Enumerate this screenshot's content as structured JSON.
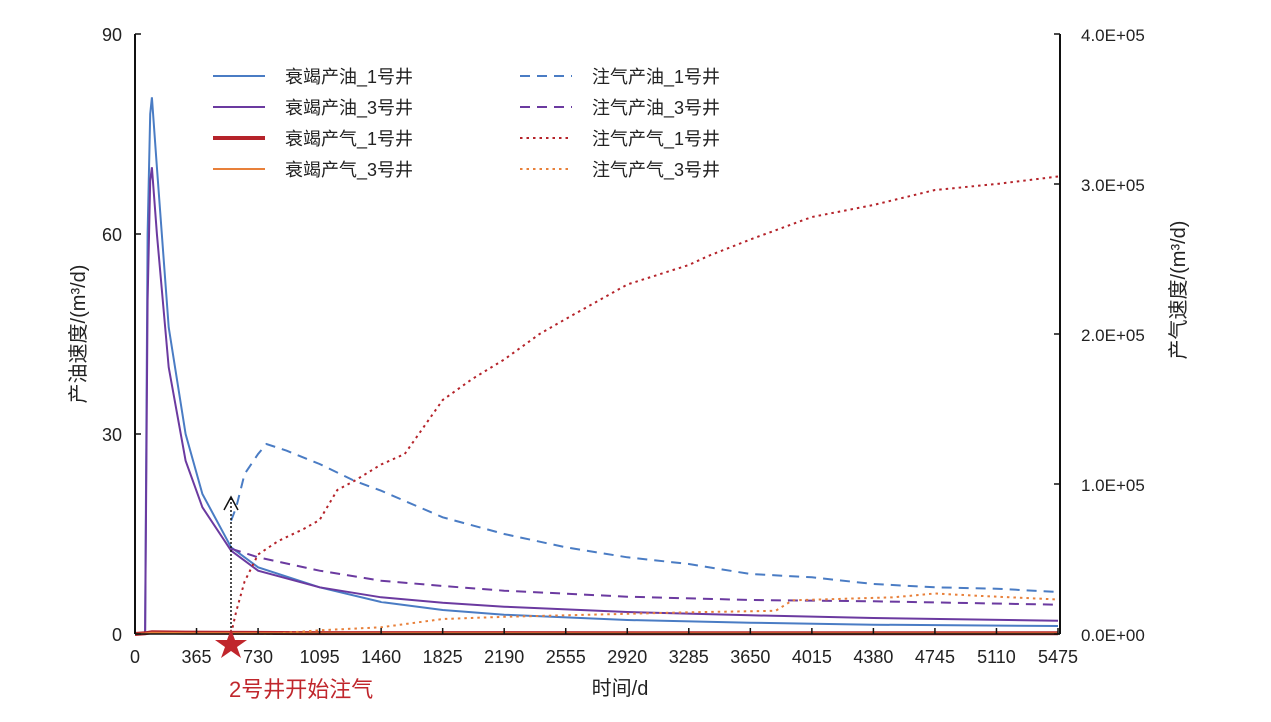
{
  "chart_data": {
    "type": "line",
    "xlabel": "时间/d",
    "ylabel_left": "产油速度/(m³/d)",
    "ylabel_right": "产气速度/(m³/d)",
    "xlim": [
      0,
      5475
    ],
    "ylim_left": [
      0,
      90
    ],
    "ylim_right": [
      0,
      400000
    ],
    "x_ticks": [
      "0",
      "365",
      "730",
      "1095",
      "1460",
      "1825",
      "2190",
      "2555",
      "2920",
      "3285",
      "3650",
      "4015",
      "4380",
      "4745",
      "5110",
      "5475"
    ],
    "y_left_ticks": [
      "0",
      "30",
      "60",
      "90"
    ],
    "y_right_ticks": [
      "0.0E+00",
      "1.0E+05",
      "2.0E+05",
      "3.0E+05",
      "4.0E+05"
    ],
    "legend_placement": "top",
    "annotation": {
      "text": "2号井开始注气",
      "x": 570
    },
    "series": [
      {
        "name": "衰竭产油_1号井",
        "axis": "left",
        "color": "#4a7cc4",
        "style": "solid",
        "x": [
          0,
          60,
          75,
          90,
          100,
          130,
          200,
          300,
          400,
          570,
          730,
          1095,
          1460,
          1825,
          2190,
          2920,
          3650,
          4380,
          5475
        ],
        "y": [
          0,
          0,
          60,
          78,
          80.5,
          70,
          46,
          30,
          21,
          13,
          10,
          7,
          4.8,
          3.6,
          2.9,
          2.1,
          1.7,
          1.4,
          1.2
        ]
      },
      {
        "name": "衰竭产油_3号井",
        "axis": "left",
        "color": "#6b3aa0",
        "style": "solid",
        "x": [
          0,
          60,
          75,
          90,
          100,
          130,
          200,
          300,
          400,
          570,
          730,
          1095,
          1460,
          1825,
          2190,
          2920,
          3650,
          4380,
          5475
        ],
        "y": [
          0,
          0,
          50,
          68,
          70,
          60,
          40,
          26,
          19,
          12.5,
          9.5,
          7,
          5.5,
          4.7,
          4.1,
          3.3,
          2.8,
          2.4,
          2
        ]
      },
      {
        "name": "衰竭产气_1号井",
        "axis": "right",
        "color": "#b5232a",
        "style": "thick",
        "x": [
          0,
          60,
          100,
          300,
          1000,
          5475
        ],
        "y": [
          0,
          500,
          1200,
          900,
          600,
          500
        ]
      },
      {
        "name": "衰竭产气_3号井",
        "axis": "right",
        "color": "#e8803a",
        "style": "solid",
        "x": [
          0,
          60,
          100,
          300,
          1000,
          5475
        ],
        "y": [
          0,
          300,
          800,
          600,
          400,
          300
        ]
      },
      {
        "name": "注气产油_1号井",
        "axis": "left",
        "color": "#4a7cc4",
        "style": "dashed",
        "x": [
          570,
          600,
          650,
          730,
          780,
          900,
          1095,
          1300,
          1460,
          1825,
          2190,
          2555,
          2920,
          3285,
          3650,
          4015,
          4380,
          4745,
          5110,
          5475
        ],
        "y": [
          17,
          19,
          24,
          27,
          28.5,
          27.5,
          25.5,
          23,
          21.5,
          17.5,
          15,
          13,
          11.5,
          10.5,
          9,
          8.5,
          7.5,
          7,
          6.8,
          6.3
        ]
      },
      {
        "name": "注气产油_3号井",
        "axis": "left",
        "color": "#6b3aa0",
        "style": "dashed",
        "x": [
          570,
          730,
          1095,
          1460,
          1825,
          2190,
          2920,
          3650,
          4380,
          5475
        ],
        "y": [
          12.8,
          11.5,
          9.5,
          8,
          7.2,
          6.5,
          5.6,
          5.1,
          4.9,
          4.4
        ]
      },
      {
        "name": "注气产气_1号井",
        "axis": "right",
        "color": "#b5232a",
        "style": "dotted",
        "x": [
          570,
          600,
          650,
          730,
          850,
          1000,
          1095,
          1200,
          1300,
          1460,
          1600,
          1825,
          2000,
          2190,
          2400,
          2555,
          2920,
          3285,
          3400,
          3650,
          4015,
          4380,
          4745,
          5110,
          5475
        ],
        "y": [
          0,
          15000,
          35000,
          53000,
          62000,
          70000,
          76000,
          96000,
          102000,
          113000,
          120000,
          156000,
          170000,
          183000,
          200000,
          210000,
          233000,
          246000,
          252000,
          263000,
          278000,
          286000,
          296000,
          300000,
          305000
        ]
      },
      {
        "name": "注气产气_3号井",
        "axis": "right",
        "color": "#e8803a",
        "style": "dotted",
        "x": [
          570,
          800,
          1095,
          1460,
          1825,
          2190,
          2555,
          3285,
          3800,
          3900,
          4500,
          4745,
          5000,
          5475
        ],
        "y": [
          0,
          0,
          2500,
          4500,
          10000,
          11500,
          12500,
          14500,
          15500,
          22500,
          24500,
          27000,
          25500,
          23000
        ]
      }
    ]
  }
}
